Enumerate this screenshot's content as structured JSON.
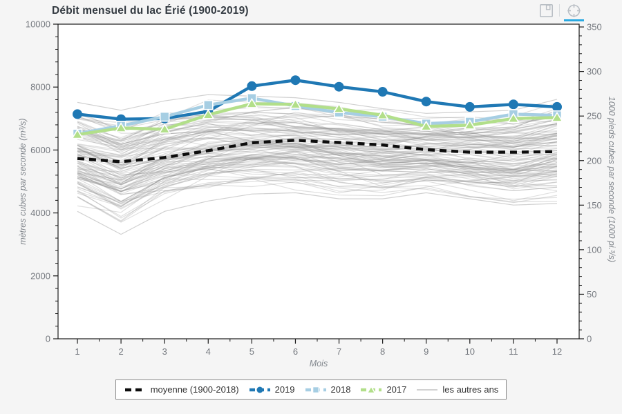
{
  "header": {
    "title": "Débit mensuel du lac Érié (1900-2019)",
    "toolbar": {
      "save_icon": "floppy-disk-icon",
      "panzoom_icon": "crosshair-circle-icon",
      "active_underline_color": "#29a9e1"
    }
  },
  "chart_data": {
    "type": "line",
    "title": "Débit mensuel du lac Érié (1900-2019)",
    "xlabel": "Mois",
    "ylabel_left": "mètres cubes par seconde (m³/s)",
    "ylabel_right": "1000 pieds cubes par seconde (1000 pi.³/s)",
    "x": [
      1,
      2,
      3,
      4,
      5,
      6,
      7,
      8,
      9,
      10,
      11,
      12
    ],
    "x_ticks": [
      1,
      2,
      3,
      4,
      5,
      6,
      7,
      8,
      9,
      10,
      11,
      12
    ],
    "ylim_left": [
      0,
      10000
    ],
    "left_ticks": [
      0,
      2000,
      4000,
      6000,
      8000,
      10000
    ],
    "left_minor_step": 400,
    "ylim_right": [
      0,
      350
    ],
    "right_ticks": [
      0,
      50,
      100,
      150,
      200,
      250,
      300,
      350
    ],
    "right_minor_step": 10,
    "m3s_per_kcfs": 28.3168,
    "grid": "off",
    "legend_position": "bottom-center",
    "series": [
      {
        "name": "moyenne (1900-2018)",
        "color": "#0d0d0d",
        "line": "dashed",
        "marker": "none",
        "values": [
          5730,
          5630,
          5760,
          5980,
          6230,
          6310,
          6240,
          6160,
          6010,
          5930,
          5930,
          5950
        ]
      },
      {
        "name": "2019",
        "color": "#1f78b4",
        "line": "solid",
        "marker": "circle",
        "values": [
          7140,
          6980,
          7000,
          7230,
          8030,
          8220,
          8010,
          7850,
          7540,
          7370,
          7450,
          7370
        ]
      },
      {
        "name": "2018",
        "color": "#a6cee3",
        "line": "solid",
        "marker": "square",
        "values": [
          6520,
          6770,
          7060,
          7430,
          7650,
          7400,
          7190,
          7060,
          6840,
          6900,
          7140,
          7100
        ]
      },
      {
        "name": "2017",
        "color": "#b2df8a",
        "line": "solid",
        "marker": "triangle",
        "values": [
          6490,
          6700,
          6660,
          7120,
          7470,
          7450,
          7310,
          7110,
          6750,
          6790,
          7000,
          7030
        ]
      }
    ],
    "other_years": {
      "name": "les autres ans",
      "color": "#d2d2d2",
      "count": 110,
      "band_min": [
        4050,
        3320,
        4050,
        4380,
        4600,
        4640,
        4450,
        4450,
        4640,
        4450,
        4250,
        4300
      ],
      "band_max": [
        7550,
        7300,
        7600,
        7800,
        7750,
        7700,
        7550,
        7350,
        7200,
        7250,
        7300,
        7650
      ]
    }
  },
  "legend": {
    "items": [
      "moyenne (1900-2018)",
      "2019",
      "2018",
      "2017",
      "les autres ans"
    ]
  }
}
